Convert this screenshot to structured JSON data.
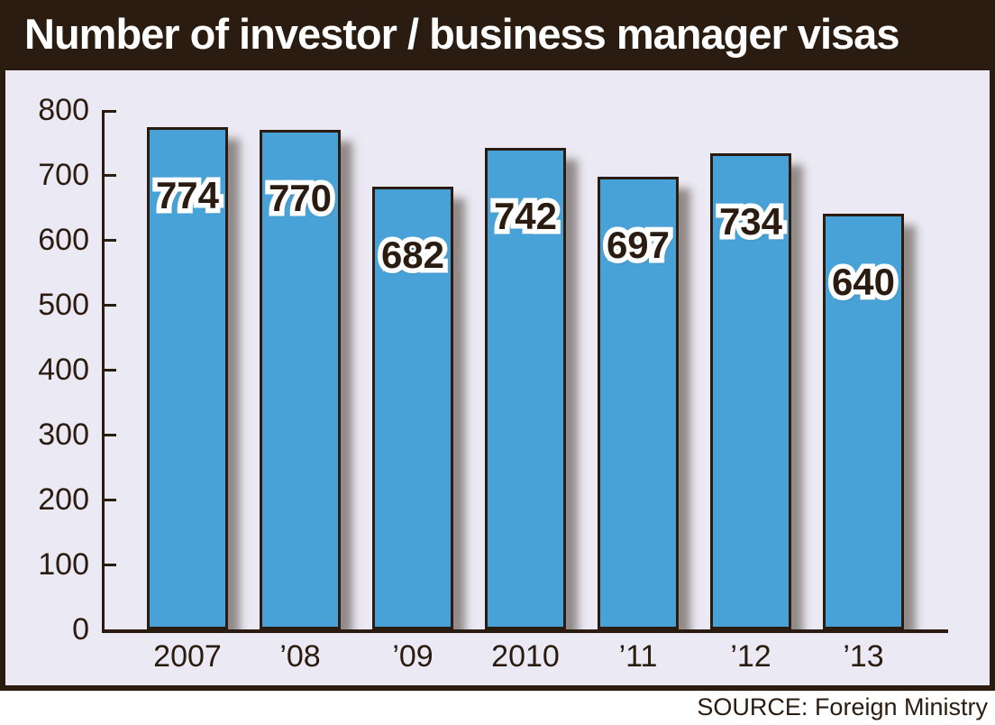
{
  "title": "Number of investor / business manager visas",
  "source": "SOURCE: Foreign Ministry",
  "colors": {
    "dark": "#2a1c10",
    "panel_bg": "#ebe9f3",
    "bar_fill": "#49a2d7",
    "bar_label_text": "#2a1c10",
    "bar_label_outline": "#ffffff",
    "title_text": "#ffffff",
    "page_bg": "#ffffff"
  },
  "chart_data": {
    "type": "bar",
    "title": "Number of investor / business manager visas",
    "categories": [
      "2007",
      "’08",
      "’09",
      "2010",
      "’11",
      "’12",
      "’13"
    ],
    "values": [
      774,
      770,
      682,
      742,
      697,
      734,
      640
    ],
    "xlabel": "",
    "ylabel": "",
    "ylim": [
      0,
      800
    ],
    "yticks": [
      0,
      100,
      200,
      300,
      400,
      500,
      600,
      700,
      800
    ],
    "grid": false,
    "legend": false,
    "bar_value_labels": true,
    "source": "SOURCE: Foreign Ministry"
  }
}
